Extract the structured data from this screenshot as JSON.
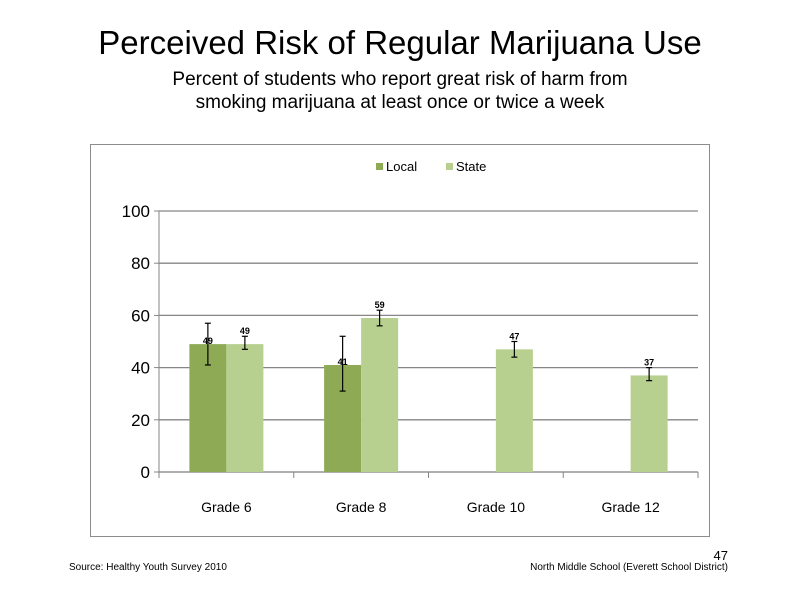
{
  "slide": {
    "title": "Perceived  Risk of Regular  Marijuana  Use",
    "subtitle": "Percent of students who report great risk of harm  from smoking marijuana  at least once or twice a week",
    "source": "Source: Healthy  Youth Survey 2010",
    "school": "North Middle  School (Everett School District)",
    "page_number": "47"
  },
  "chart_data": {
    "type": "bar",
    "categories": [
      "Grade 6",
      "Grade 8",
      "Grade 10",
      "Grade 12"
    ],
    "series": [
      {
        "name": "Local",
        "color": "#8faa54",
        "values": [
          49,
          41,
          null,
          null
        ],
        "data_labels": [
          "49",
          "41",
          "",
          ""
        ],
        "error_low": [
          41,
          31,
          null,
          null
        ],
        "error_high": [
          57,
          52,
          null,
          null
        ]
      },
      {
        "name": "State",
        "color": "#b8d08f",
        "values": [
          49,
          59,
          47,
          37
        ],
        "data_labels": [
          "49",
          "59",
          "47",
          "37"
        ],
        "error_low": [
          47,
          56,
          44,
          35
        ],
        "error_high": [
          52,
          62,
          50,
          40
        ]
      }
    ],
    "ylim": [
      0,
      100
    ],
    "yticks": [
      0,
      20,
      40,
      60,
      80,
      100
    ],
    "ytick_labels": [
      "0",
      "20",
      "40",
      "60",
      "80",
      "100"
    ],
    "grid": true,
    "legend": "top-center"
  }
}
